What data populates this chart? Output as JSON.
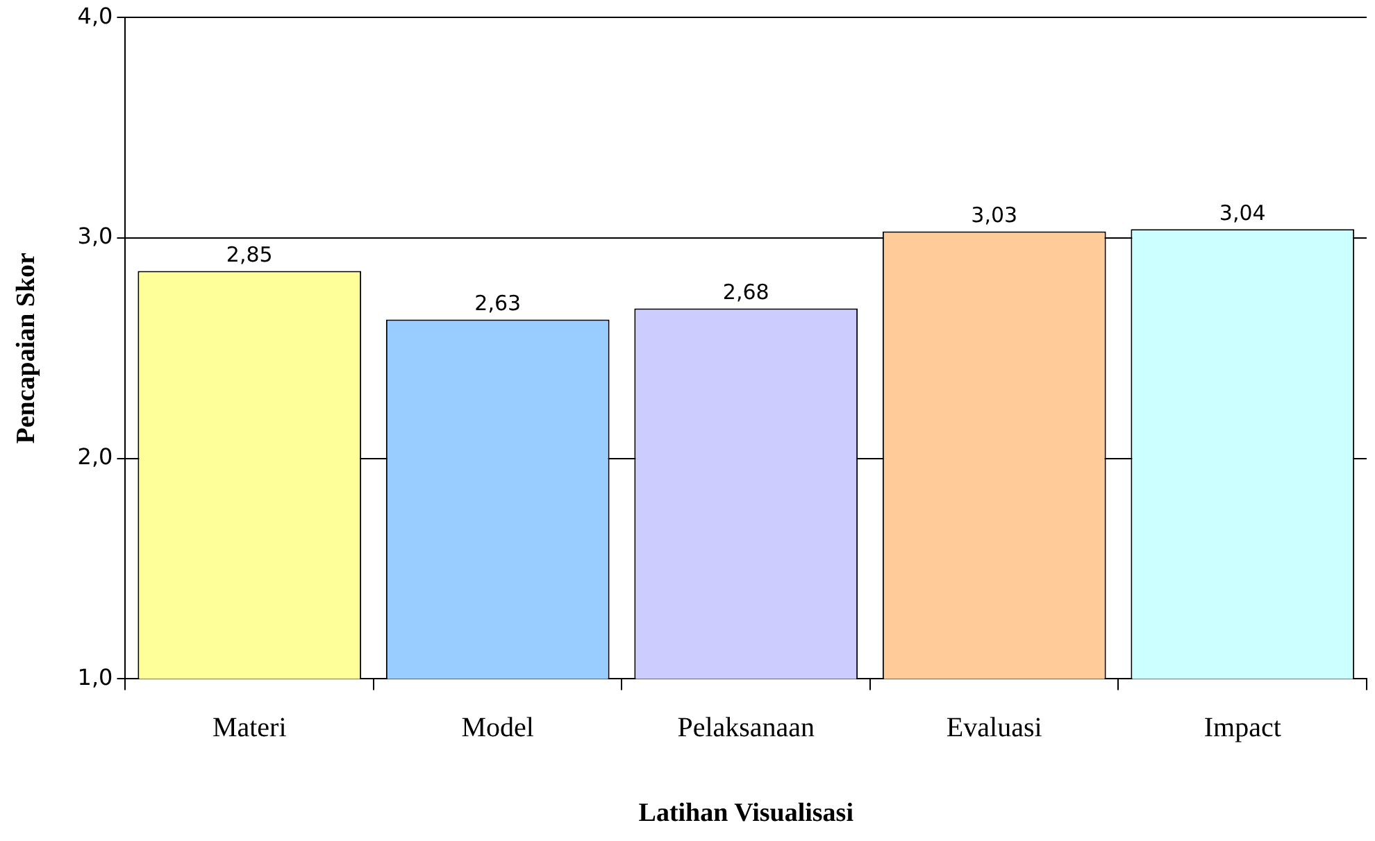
{
  "chart_data": {
    "type": "bar",
    "xlabel": "Latihan Visualisasi",
    "ylabel": "Pencapaian Skor",
    "categories": [
      "Materi",
      "Model",
      "Pelaksanaan",
      "Evaluasi",
      "Impact"
    ],
    "values": [
      2.85,
      2.63,
      2.68,
      3.03,
      3.04
    ],
    "value_labels": [
      "2,85",
      "2,63",
      "2,68",
      "3,03",
      "3,04"
    ],
    "colors": [
      "#ffff99",
      "#99ccff",
      "#ccccff",
      "#ffcc99",
      "#ccffff"
    ],
    "ylim": [
      1,
      4
    ],
    "yticks": [
      {
        "value": 1,
        "label": "1,0"
      },
      {
        "value": 2,
        "label": "2,0"
      },
      {
        "value": 3,
        "label": "3,0"
      },
      {
        "value": 4,
        "label": "4,0"
      }
    ],
    "grid": "y",
    "legend": false
  }
}
